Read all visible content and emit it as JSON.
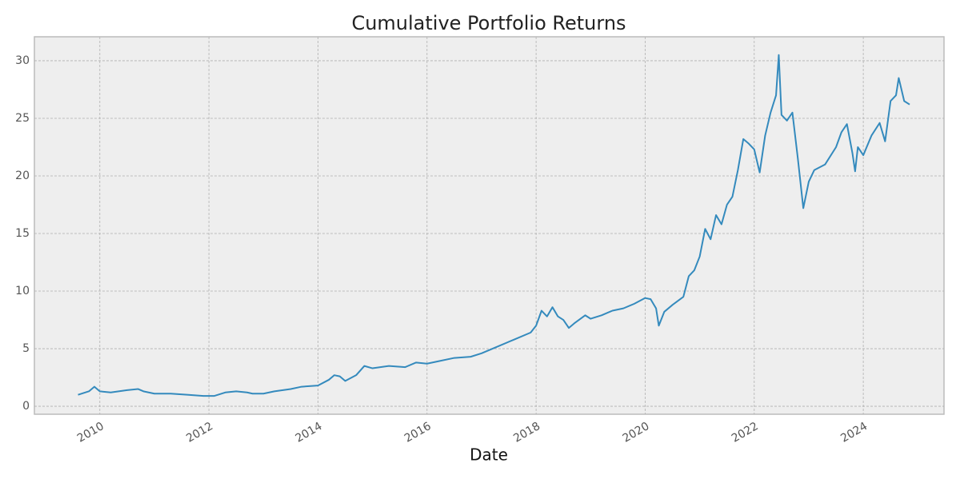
{
  "chart_data": {
    "type": "line",
    "title": "Cumulative Portfolio Returns",
    "xlabel": "Date",
    "x": [
      2009.6,
      2009.8,
      2009.9,
      2010.0,
      2010.2,
      2010.5,
      2010.7,
      2010.8,
      2011.0,
      2011.3,
      2011.6,
      2011.9,
      2012.1,
      2012.3,
      2012.5,
      2012.7,
      2012.8,
      2013.0,
      2013.2,
      2013.5,
      2013.7,
      2014.0,
      2014.2,
      2014.3,
      2014.4,
      2014.5,
      2014.7,
      2014.85,
      2015.0,
      2015.3,
      2015.6,
      2015.8,
      2016.0,
      2016.2,
      2016.5,
      2016.8,
      2017.0,
      2017.3,
      2017.6,
      2017.9,
      2018.0,
      2018.1,
      2018.2,
      2018.3,
      2018.4,
      2018.5,
      2018.6,
      2018.7,
      2018.9,
      2019.0,
      2019.2,
      2019.4,
      2019.6,
      2019.8,
      2020.0,
      2020.1,
      2020.2,
      2020.25,
      2020.35,
      2020.5,
      2020.7,
      2020.8,
      2020.9,
      2021.0,
      2021.1,
      2021.2,
      2021.3,
      2021.4,
      2021.5,
      2021.6,
      2021.7,
      2021.8,
      2021.9,
      2022.0,
      2022.1,
      2022.2,
      2022.3,
      2022.4,
      2022.45,
      2022.5,
      2022.6,
      2022.7,
      2022.8,
      2022.9,
      2023.0,
      2023.1,
      2023.3,
      2023.5,
      2023.6,
      2023.7,
      2023.8,
      2023.85,
      2023.9,
      2024.0,
      2024.15,
      2024.3,
      2024.4,
      2024.5,
      2024.6,
      2024.65,
      2024.75,
      2024.85
    ],
    "values": [
      1.0,
      1.3,
      1.7,
      1.3,
      1.2,
      1.4,
      1.5,
      1.3,
      1.1,
      1.1,
      1.0,
      0.9,
      0.9,
      1.2,
      1.3,
      1.2,
      1.1,
      1.1,
      1.3,
      1.5,
      1.7,
      1.8,
      2.3,
      2.7,
      2.6,
      2.2,
      2.7,
      3.5,
      3.3,
      3.5,
      3.4,
      3.8,
      3.7,
      3.9,
      4.2,
      4.3,
      4.6,
      5.2,
      5.8,
      6.4,
      7.0,
      8.3,
      7.8,
      8.6,
      7.8,
      7.5,
      6.8,
      7.2,
      7.9,
      7.6,
      7.9,
      8.3,
      8.5,
      8.9,
      9.4,
      9.3,
      8.5,
      7.0,
      8.2,
      8.8,
      9.5,
      11.3,
      11.8,
      13.0,
      15.4,
      14.5,
      16.6,
      15.8,
      17.5,
      18.2,
      20.5,
      23.2,
      22.8,
      22.3,
      20.3,
      23.5,
      25.5,
      27.0,
      30.5,
      25.3,
      24.8,
      25.5,
      21.5,
      17.2,
      19.5,
      20.5,
      21.0,
      22.5,
      23.8,
      24.5,
      22.0,
      20.4,
      22.5,
      21.8,
      23.5,
      24.6,
      23.0,
      26.5,
      27.0,
      28.5,
      26.5,
      26.2
    ],
    "color": "#348abd",
    "xlim": [
      2008.8,
      2025.48
    ],
    "xticks": [
      2010,
      2012,
      2014,
      2016,
      2018,
      2020,
      2022,
      2024
    ],
    "ylim": [
      -0.69,
      32.08
    ],
    "yticks": [
      0,
      5,
      10,
      15,
      20,
      25,
      30
    ],
    "grid": true
  }
}
